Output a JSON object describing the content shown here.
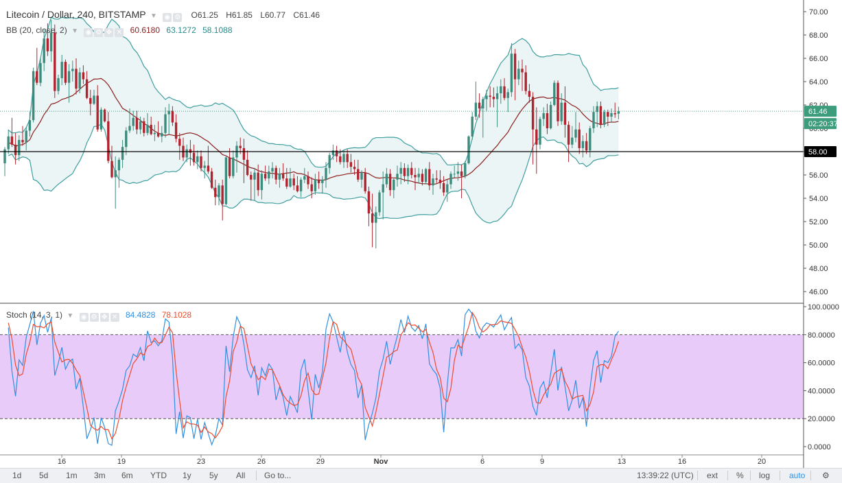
{
  "legend": {
    "title": "Litecoin / Dollar, 240, BITSTAMP",
    "o": "O61.25",
    "h": "H61.85",
    "l": "L60.77",
    "c": "C61.46",
    "bb_label": "BB (20, close, 2)",
    "bb_mid": "60.6180",
    "bb_up": "63.1272",
    "bb_low": "58.1088",
    "stoch_label": "Stoch (14, 3, 1)",
    "stoch_k": "84.4828",
    "stoch_d": "78.1028"
  },
  "toolbar": {
    "ranges": [
      "1d",
      "5d",
      "1m",
      "3m",
      "6m",
      "YTD",
      "1y",
      "5y",
      "All"
    ],
    "goto": "Go to...",
    "time": "13:39:22 (UTC)",
    "ext": "ext",
    "pct": "%",
    "log": "log",
    "auto": "auto"
  },
  "colors": {
    "up": "#3c8c7d",
    "down": "#b0242f",
    "band": "#3f9e9e",
    "band_fill": "#ecf5f5",
    "mid": "#8b1d1d",
    "k": "#2f8fe0",
    "d": "#ee4a2a",
    "zone": "#e8cbf8",
    "last_price_label": "#3c9c7c"
  },
  "chart_data": [
    {
      "type": "candlestick",
      "title": "Litecoin / Dollar, 240, BITSTAMP",
      "x_tick_labels": [
        "16",
        "19",
        "23",
        "26",
        "29",
        "Nov",
        "6",
        "9",
        "13",
        "16",
        "20"
      ],
      "y_tick_labels": [
        "46.00",
        "48.00",
        "50.00",
        "52.00",
        "54.00",
        "56.00",
        "58.00",
        "60.00",
        "62.00",
        "64.00",
        "66.00",
        "68.00",
        "70.00"
      ],
      "ylim": [
        45.5,
        70.5
      ],
      "horizontal_line": "58.00",
      "last_price": "61.46",
      "countdown": "02:20:37",
      "ohlc": [
        [
          57.0,
          58.4,
          55.9,
          58.2
        ],
        [
          58.2,
          59.9,
          57.8,
          59.3
        ],
        [
          59.3,
          60.9,
          58.4,
          58.6
        ],
        [
          58.6,
          59.6,
          56.9,
          57.7
        ],
        [
          57.7,
          59.4,
          57.2,
          59.0
        ],
        [
          59.0,
          60.2,
          58.5,
          58.8
        ],
        [
          58.8,
          60.1,
          58.1,
          59.8
        ],
        [
          59.8,
          61.4,
          59.3,
          60.7
        ],
        [
          60.7,
          65.2,
          60.5,
          64.9
        ],
        [
          64.9,
          66.9,
          63.7,
          63.9
        ],
        [
          63.9,
          66.0,
          63.6,
          65.6
        ],
        [
          65.6,
          68.5,
          64.9,
          67.7
        ],
        [
          67.7,
          69.0,
          66.2,
          66.6
        ],
        [
          66.6,
          69.3,
          65.7,
          68.2
        ],
        [
          68.2,
          68.9,
          62.6,
          63.2
        ],
        [
          63.2,
          64.6,
          62.9,
          64.3
        ],
        [
          64.3,
          66.3,
          63.7,
          65.7
        ],
        [
          65.7,
          65.9,
          63.7,
          63.9
        ],
        [
          63.9,
          65.5,
          62.2,
          64.9
        ],
        [
          64.9,
          65.8,
          64.0,
          65.1
        ],
        [
          65.1,
          66.0,
          62.9,
          63.4
        ],
        [
          63.4,
          65.2,
          63.0,
          64.8
        ],
        [
          64.8,
          65.4,
          63.8,
          64.2
        ],
        [
          64.2,
          64.9,
          62.5,
          62.6
        ],
        [
          62.6,
          63.3,
          61.1,
          62.1
        ],
        [
          62.1,
          63.3,
          62.0,
          62.8
        ],
        [
          62.8,
          63.7,
          59.7,
          59.9
        ],
        [
          59.9,
          61.8,
          59.7,
          61.6
        ],
        [
          61.6,
          61.7,
          60.5,
          60.6
        ],
        [
          60.6,
          61.4,
          57.0,
          57.2
        ],
        [
          57.2,
          58.5,
          55.7,
          55.8
        ],
        [
          55.8,
          57.6,
          53.1,
          56.4
        ],
        [
          56.4,
          57.5,
          54.9,
          57.3
        ],
        [
          57.3,
          59.0,
          56.6,
          58.4
        ],
        [
          58.4,
          60.1,
          57.7,
          59.8
        ],
        [
          59.8,
          61.7,
          59.6,
          60.2
        ],
        [
          60.2,
          61.5,
          59.8,
          60.9
        ],
        [
          60.9,
          61.5,
          59.5,
          59.9
        ],
        [
          59.9,
          61.0,
          59.5,
          60.6
        ],
        [
          60.6,
          60.9,
          59.3,
          59.6
        ],
        [
          59.6,
          61.3,
          59.4,
          60.3
        ],
        [
          60.3,
          61.0,
          59.4,
          59.5
        ],
        [
          59.5,
          60.3,
          58.9,
          59.6
        ],
        [
          59.6,
          60.6,
          59.2,
          59.3
        ],
        [
          59.3,
          60.2,
          58.8,
          59.6
        ],
        [
          59.6,
          61.8,
          59.2,
          61.2
        ],
        [
          61.2,
          62.1,
          59.5,
          61.5
        ],
        [
          61.5,
          61.9,
          60.2,
          60.5
        ],
        [
          60.5,
          61.2,
          58.8,
          59.1
        ],
        [
          59.1,
          59.6,
          57.3,
          58.5
        ],
        [
          58.5,
          59.2,
          57.2,
          57.5
        ],
        [
          57.5,
          58.6,
          57.1,
          58.2
        ],
        [
          58.2,
          59.0,
          56.8,
          57.9
        ],
        [
          57.9,
          58.6,
          56.8,
          57.1
        ],
        [
          57.1,
          58.1,
          56.5,
          57.6
        ],
        [
          57.6,
          58.1,
          56.3,
          56.6
        ],
        [
          56.6,
          57.2,
          55.7,
          56.8
        ],
        [
          56.8,
          58.5,
          56.1,
          56.3
        ],
        [
          56.3,
          56.6,
          54.8,
          54.9
        ],
        [
          54.9,
          55.6,
          53.4,
          54.1
        ],
        [
          54.1,
          55.3,
          53.4,
          55.1
        ],
        [
          55.1,
          55.6,
          52.1,
          53.5
        ],
        [
          53.5,
          57.7,
          53.4,
          57.5
        ],
        [
          57.5,
          58.3,
          55.7,
          55.9
        ],
        [
          55.9,
          58.1,
          55.7,
          57.5
        ],
        [
          57.5,
          58.9,
          56.2,
          58.5
        ],
        [
          58.5,
          59.2,
          57.8,
          58.3
        ],
        [
          58.3,
          59.1,
          55.3,
          57.3
        ],
        [
          57.3,
          58.1,
          55.9,
          56.0
        ],
        [
          56.0,
          56.3,
          53.8,
          55.6
        ],
        [
          55.6,
          56.6,
          53.8,
          56.2
        ],
        [
          56.2,
          56.9,
          54.2,
          54.7
        ],
        [
          54.7,
          56.4,
          53.9,
          56.1
        ],
        [
          56.1,
          56.8,
          55.5,
          55.7
        ],
        [
          55.7,
          56.8,
          55.2,
          56.3
        ],
        [
          56.3,
          57.1,
          55.7,
          56.6
        ],
        [
          56.6,
          56.8,
          55.2,
          55.6
        ],
        [
          55.6,
          56.6,
          54.9,
          56.1
        ],
        [
          56.1,
          57.0,
          55.5,
          55.7
        ],
        [
          55.7,
          56.6,
          54.8,
          55.0
        ],
        [
          55.0,
          56.6,
          54.9,
          55.7
        ],
        [
          55.7,
          56.1,
          54.7,
          55.1
        ],
        [
          55.1,
          55.9,
          54.5,
          54.6
        ],
        [
          54.6,
          55.8,
          54.1,
          55.6
        ],
        [
          55.6,
          56.6,
          55.3,
          55.9
        ],
        [
          55.9,
          56.3,
          54.8,
          55.2
        ],
        [
          55.2,
          55.8,
          54.0,
          54.6
        ],
        [
          54.6,
          56.1,
          54.3,
          55.6
        ],
        [
          55.6,
          56.3,
          54.8,
          55.3
        ],
        [
          55.3,
          55.9,
          54.4,
          55.6
        ],
        [
          55.6,
          57.1,
          54.9,
          56.6
        ],
        [
          56.6,
          57.9,
          56.1,
          57.7
        ],
        [
          57.7,
          58.6,
          57.3,
          58.1
        ],
        [
          58.1,
          58.5,
          57.1,
          57.6
        ],
        [
          57.6,
          58.2,
          56.9,
          57.1
        ],
        [
          57.1,
          58.1,
          56.6,
          57.8
        ],
        [
          57.8,
          58.2,
          56.6,
          57.1
        ],
        [
          57.1,
          57.8,
          56.2,
          56.7
        ],
        [
          56.7,
          57.3,
          56.0,
          56.5
        ],
        [
          56.5,
          57.3,
          55.4,
          55.6
        ],
        [
          55.6,
          56.4,
          54.9,
          56.2
        ],
        [
          56.2,
          56.6,
          54.4,
          54.6
        ],
        [
          54.6,
          55.0,
          51.6,
          52.7
        ],
        [
          52.7,
          54.4,
          49.8,
          51.9
        ],
        [
          51.9,
          53.3,
          49.7,
          52.8
        ],
        [
          52.8,
          54.7,
          52.5,
          54.5
        ],
        [
          54.5,
          56.3,
          52.2,
          55.2
        ],
        [
          55.2,
          56.6,
          54.9,
          56.1
        ],
        [
          56.1,
          56.5,
          54.2,
          54.7
        ],
        [
          54.7,
          55.7,
          54.0,
          55.6
        ],
        [
          55.6,
          56.8,
          55.0,
          56.1
        ],
        [
          56.1,
          57.1,
          55.2,
          56.6
        ],
        [
          56.6,
          57.0,
          55.4,
          55.9
        ],
        [
          55.9,
          56.9,
          55.2,
          56.6
        ],
        [
          56.6,
          57.1,
          55.7,
          56.0
        ],
        [
          56.0,
          56.6,
          54.7,
          55.8
        ],
        [
          55.8,
          56.6,
          55.3,
          56.1
        ],
        [
          56.1,
          56.5,
          55.1,
          55.4
        ],
        [
          55.4,
          56.6,
          55.2,
          56.5
        ],
        [
          56.5,
          57.1,
          54.7,
          55.1
        ],
        [
          55.1,
          56.1,
          54.3,
          55.7
        ],
        [
          55.7,
          56.4,
          55.3,
          55.6
        ],
        [
          55.6,
          56.4,
          54.8,
          55.3
        ],
        [
          55.3,
          55.9,
          54.2,
          54.5
        ],
        [
          54.5,
          55.6,
          53.7,
          55.2
        ],
        [
          55.2,
          56.3,
          54.8,
          56.1
        ],
        [
          56.1,
          56.8,
          55.8,
          56.1
        ],
        [
          56.1,
          57.1,
          55.5,
          56.3
        ],
        [
          56.3,
          56.9,
          54.0,
          55.9
        ],
        [
          55.9,
          57.2,
          55.7,
          57.0
        ],
        [
          57.0,
          59.4,
          56.9,
          59.3
        ],
        [
          59.3,
          61.4,
          59.0,
          61.0
        ],
        [
          61.0,
          64.0,
          60.7,
          62.2
        ],
        [
          62.2,
          63.0,
          60.9,
          61.7
        ],
        [
          61.7,
          62.7,
          59.2,
          62.5
        ],
        [
          62.5,
          63.3,
          61.5,
          62.8
        ],
        [
          62.8,
          63.6,
          61.8,
          62.7
        ],
        [
          62.7,
          63.5,
          61.8,
          62.5
        ],
        [
          62.5,
          63.6,
          60.1,
          63.0
        ],
        [
          63.0,
          64.2,
          62.1,
          63.6
        ],
        [
          63.6,
          64.3,
          62.4,
          62.6
        ],
        [
          62.6,
          63.4,
          61.4,
          63.1
        ],
        [
          63.1,
          67.3,
          62.7,
          66.4
        ],
        [
          66.4,
          66.8,
          62.4,
          64.2
        ],
        [
          64.2,
          65.8,
          63.7,
          65.1
        ],
        [
          65.1,
          65.9,
          63.2,
          64.8
        ],
        [
          64.8,
          65.4,
          62.9,
          63.2
        ],
        [
          63.2,
          63.8,
          62.2,
          62.7
        ],
        [
          62.7,
          63.1,
          56.9,
          59.9
        ],
        [
          59.9,
          61.8,
          56.1,
          58.6
        ],
        [
          58.6,
          61.0,
          58.2,
          60.8
        ],
        [
          60.8,
          61.8,
          60.2,
          61.3
        ],
        [
          61.3,
          62.1,
          59.5,
          60.0
        ],
        [
          60.0,
          62.3,
          59.9,
          62.0
        ],
        [
          62.0,
          64.1,
          61.9,
          63.9
        ],
        [
          63.9,
          64.1,
          60.2,
          60.6
        ],
        [
          60.6,
          63.0,
          60.3,
          62.2
        ],
        [
          62.2,
          63.6,
          59.2,
          60.3
        ],
        [
          60.3,
          60.6,
          57.1,
          58.6
        ],
        [
          58.6,
          60.2,
          58.3,
          59.2
        ],
        [
          59.2,
          61.4,
          58.8,
          59.9
        ],
        [
          59.9,
          60.5,
          57.8,
          58.3
        ],
        [
          58.3,
          59.4,
          57.5,
          58.9
        ],
        [
          58.9,
          59.6,
          57.8,
          58.1
        ],
        [
          58.1,
          60.2,
          57.5,
          60.0
        ],
        [
          60.0,
          61.9,
          59.6,
          61.4
        ],
        [
          61.4,
          62.3,
          60.1,
          61.9
        ],
        [
          61.9,
          62.3,
          60.0,
          60.3
        ],
        [
          60.3,
          61.6,
          60.1,
          61.4
        ],
        [
          61.4,
          61.6,
          60.2,
          61.0
        ],
        [
          61.0,
          61.7,
          60.5,
          61.3
        ],
        [
          61.3,
          62.2,
          60.9,
          61.2
        ],
        [
          61.25,
          61.85,
          60.77,
          61.46
        ]
      ]
    },
    {
      "type": "line",
      "title": "Stoch (14, 3, 1)",
      "y_tick_labels": [
        "0.0000",
        "20.0000",
        "40.0000",
        "60.0000",
        "80.0000",
        "100.0000"
      ],
      "ylim": [
        -5,
        102
      ],
      "levels": [
        20,
        80
      ]
    }
  ]
}
